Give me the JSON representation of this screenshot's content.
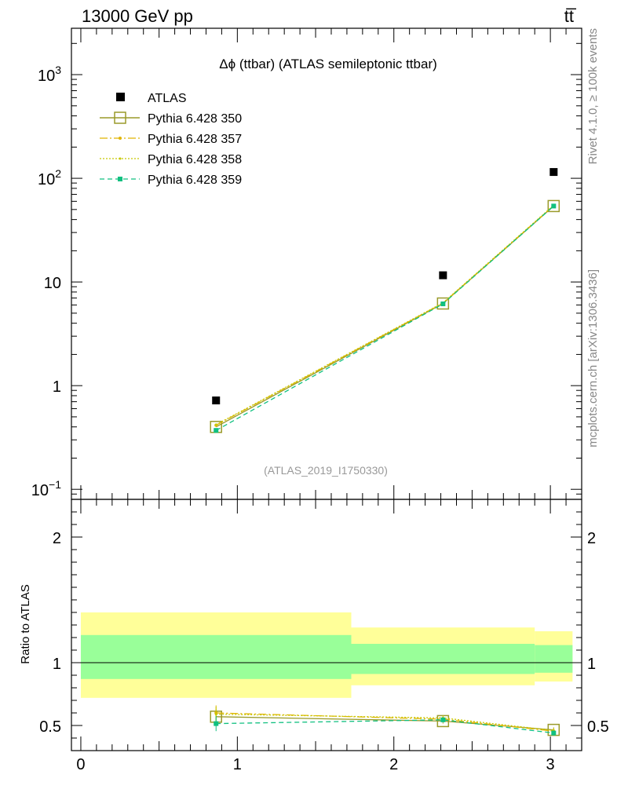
{
  "header": {
    "energy_label": "13000 GeV pp",
    "process_label": "tt̅"
  },
  "side": {
    "rivet_label": "Rivet 4.1.0, ≥ 100k events",
    "mcplots_label": "mcplots.cern.ch [arXiv:1306.3436]"
  },
  "colors": {
    "atlas": "#000000",
    "p350": "#9a9a2a",
    "p357": "#e0b400",
    "p358": "#c8c800",
    "p359": "#10c080",
    "band_yellow": "#ffff99",
    "band_green": "#99ff99"
  },
  "chart_data": {
    "type": "scatter",
    "title": "Δϕ (ttbar) (ATLAS semileptonic ttbar)",
    "analysis_id": "(ATLAS_2019_I1750330)",
    "ylabel_ratio": "Ratio to ATLAS",
    "xlim": [
      -0.06,
      3.2
    ],
    "top_ylim_log": [
      0.08,
      2800
    ],
    "ratio_ylim": [
      0.3,
      2.3
    ],
    "top_yticks": [
      {
        "v": 1000,
        "label": "10",
        "sup": "3"
      },
      {
        "v": 100,
        "label": "10",
        "sup": "2"
      },
      {
        "v": 10,
        "label": "10",
        "sup": ""
      },
      {
        "v": 1,
        "label": "1",
        "sup": ""
      },
      {
        "v": 0.1,
        "label": "10",
        "sup": "−1"
      }
    ],
    "ratio_yticks": [
      {
        "v": 2,
        "label": "2"
      },
      {
        "v": 1,
        "label": "1"
      },
      {
        "v": 0.5,
        "label": "0.5"
      }
    ],
    "xticks": [
      {
        "v": 0,
        "label": "0"
      },
      {
        "v": 1,
        "label": "1"
      },
      {
        "v": 2,
        "label": "2"
      },
      {
        "v": 3,
        "label": "3"
      }
    ],
    "bins": [
      {
        "lo": 0.0,
        "hi": 1.728,
        "x": 0.864
      },
      {
        "lo": 1.728,
        "hi": 2.9,
        "x": 2.314
      },
      {
        "lo": 2.9,
        "hi": 3.1416,
        "x": 3.021
      }
    ],
    "atlas": {
      "name": "ATLAS",
      "values": [
        0.72,
        11.6,
        115
      ],
      "band_outer": [
        [
          0.72,
          1.4
        ],
        [
          0.82,
          1.28
        ],
        [
          0.85,
          1.25
        ]
      ],
      "band_inner": [
        [
          0.87,
          1.22
        ],
        [
          0.91,
          1.15
        ],
        [
          0.92,
          1.14
        ]
      ]
    },
    "series": [
      {
        "name": "Pythia 6.428 350",
        "key": "p350",
        "style": "square-open",
        "dash": "",
        "values": [
          0.4,
          6.2,
          54
        ],
        "ratio": [
          0.57,
          0.535,
          0.465
        ],
        "ratio_err": [
          0.06,
          0.02,
          0.02
        ]
      },
      {
        "name": "Pythia 6.428 357",
        "key": "p357",
        "style": "dot-small",
        "dash": "10,3,2,3",
        "values": [
          0.415,
          6.25,
          54.5
        ],
        "ratio": [
          0.6,
          0.55,
          0.455
        ],
        "ratio_err": [
          0.06,
          0.02,
          0.02
        ]
      },
      {
        "name": "Pythia 6.428 358",
        "key": "p358",
        "style": "dot-tiny",
        "dash": "2,2",
        "values": [
          0.42,
          6.3,
          55
        ],
        "ratio": [
          0.59,
          0.56,
          0.46
        ],
        "ratio_err": [
          0.06,
          0.02,
          0.02
        ]
      },
      {
        "name": "Pythia 6.428 359",
        "key": "p359",
        "style": "square-filled",
        "dash": "6,4",
        "values": [
          0.37,
          6.15,
          54
        ],
        "ratio": [
          0.515,
          0.545,
          0.44
        ],
        "ratio_err": [
          0.06,
          0.02,
          0.02
        ]
      }
    ]
  }
}
